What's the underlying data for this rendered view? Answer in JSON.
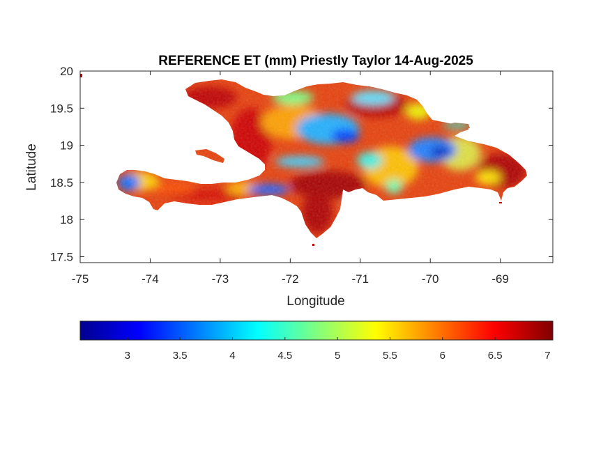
{
  "chart_data": {
    "type": "heatmap",
    "title": "REFERENCE ET (mm) Priestly Taylor 14-Aug-2025",
    "xlabel": "Longitude",
    "ylabel": "Latitude",
    "xlim": [
      -75,
      -68.25
    ],
    "ylim": [
      17.42,
      20
    ],
    "xticks": [
      -75,
      -74,
      -73,
      -72,
      -71,
      -70,
      -69
    ],
    "xtick_labels": [
      "-75",
      "-74",
      "-73",
      "-72",
      "-71",
      "-70",
      "-69"
    ],
    "yticks": [
      17.5,
      18,
      18.5,
      19,
      19.5,
      20
    ],
    "ytick_labels": [
      "17.5",
      "18",
      "18.5",
      "19",
      "19.5",
      "20"
    ],
    "colorbar": {
      "colormap": "jet",
      "orientation": "horizontal",
      "location": "below",
      "clim": [
        2.55,
        7.05
      ],
      "ticks": [
        3,
        3.5,
        4,
        4.5,
        5,
        5.5,
        6,
        6.5,
        7
      ],
      "tick_labels": [
        "3",
        "3.5",
        "4",
        "4.5",
        "5",
        "5.5",
        "6",
        "6.5",
        "7"
      ]
    },
    "land_color": "value-colored",
    "background_color": "#ffffff",
    "regions": {
      "min_cluster_1": {
        "lon": -74.4,
        "lat": 18.45,
        "value": 3.2
      },
      "min_cluster_2": {
        "lon": -71.3,
        "lat": 19.1,
        "value": 3.3
      },
      "min_cluster_3": {
        "lon": -69.9,
        "lat": 18.9,
        "value": 3.2
      },
      "max_cluster_1": {
        "lon": -71.6,
        "lat": 18.1,
        "value": 6.9
      },
      "max_cluster_2": {
        "lon": -68.9,
        "lat": 18.5,
        "value": 6.8
      }
    }
  }
}
